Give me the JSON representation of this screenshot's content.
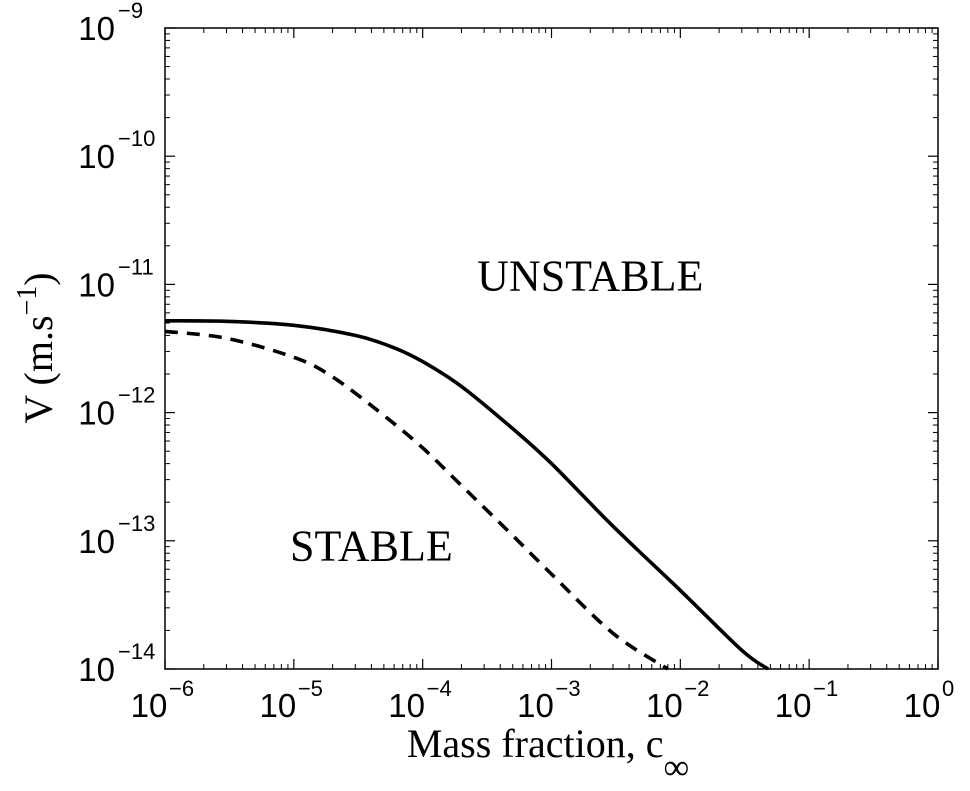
{
  "chart_data": {
    "type": "line",
    "xscale": "log",
    "yscale": "log",
    "xlim": [
      1e-06,
      1
    ],
    "ylim": [
      1e-14,
      1e-09
    ],
    "grid": false,
    "xlabel": "Mass fraction, c",
    "xlabel_subscript": "∞",
    "ylabel": "V (m.s",
    "ylabel_superscript": "−1",
    "ylabel_close": ")",
    "x_ticks": [
      {
        "value": 1e-06,
        "base": "10",
        "exp": "−6"
      },
      {
        "value": 1e-05,
        "base": "10",
        "exp": "−5"
      },
      {
        "value": 0.0001,
        "base": "10",
        "exp": "−4"
      },
      {
        "value": 0.001,
        "base": "10",
        "exp": "−3"
      },
      {
        "value": 0.01,
        "base": "10",
        "exp": "−2"
      },
      {
        "value": 0.1,
        "base": "10",
        "exp": "−1"
      },
      {
        "value": 1,
        "base": "10",
        "exp": "0"
      }
    ],
    "y_ticks": [
      {
        "value": 1e-09,
        "base": "10",
        "exp": "−9"
      },
      {
        "value": 1e-10,
        "base": "10",
        "exp": "−10"
      },
      {
        "value": 1e-11,
        "base": "10",
        "exp": "−11"
      },
      {
        "value": 1e-12,
        "base": "10",
        "exp": "−12"
      },
      {
        "value": 1e-13,
        "base": "10",
        "exp": "−13"
      },
      {
        "value": 1e-14,
        "base": "10",
        "exp": "−14"
      }
    ],
    "series": [
      {
        "style": "solid",
        "x": [
          1e-06,
          3e-06,
          1e-05,
          3e-05,
          6e-05,
          0.0001,
          0.0002,
          0.0005,
          0.001,
          0.003,
          0.01,
          0.03,
          0.048
        ],
        "y": [
          5.2e-12,
          5.15e-12,
          4.8e-12,
          4e-12,
          3.2e-12,
          2.5e-12,
          1.6e-12,
          7.5e-13,
          4e-13,
          1.3e-13,
          4.1e-14,
          1.4e-14,
          1e-14
        ]
      },
      {
        "style": "dashed",
        "x": [
          1e-06,
          3e-06,
          1e-05,
          2e-05,
          5e-05,
          0.0001,
          0.0002,
          0.0005,
          0.001,
          0.003,
          0.008
        ],
        "y": [
          4.3e-12,
          3.8e-12,
          2.7e-12,
          1.9e-12,
          9.5e-13,
          5.3e-13,
          2.7e-13,
          1.1e-13,
          5.5e-14,
          1.9e-14,
          1e-14
        ]
      }
    ],
    "annotations": [
      {
        "text": "UNSTABLE",
        "x": 0.002,
        "y": 9e-12
      },
      {
        "text": "STABLE",
        "x": 4e-05,
        "y": 7e-14
      }
    ]
  }
}
